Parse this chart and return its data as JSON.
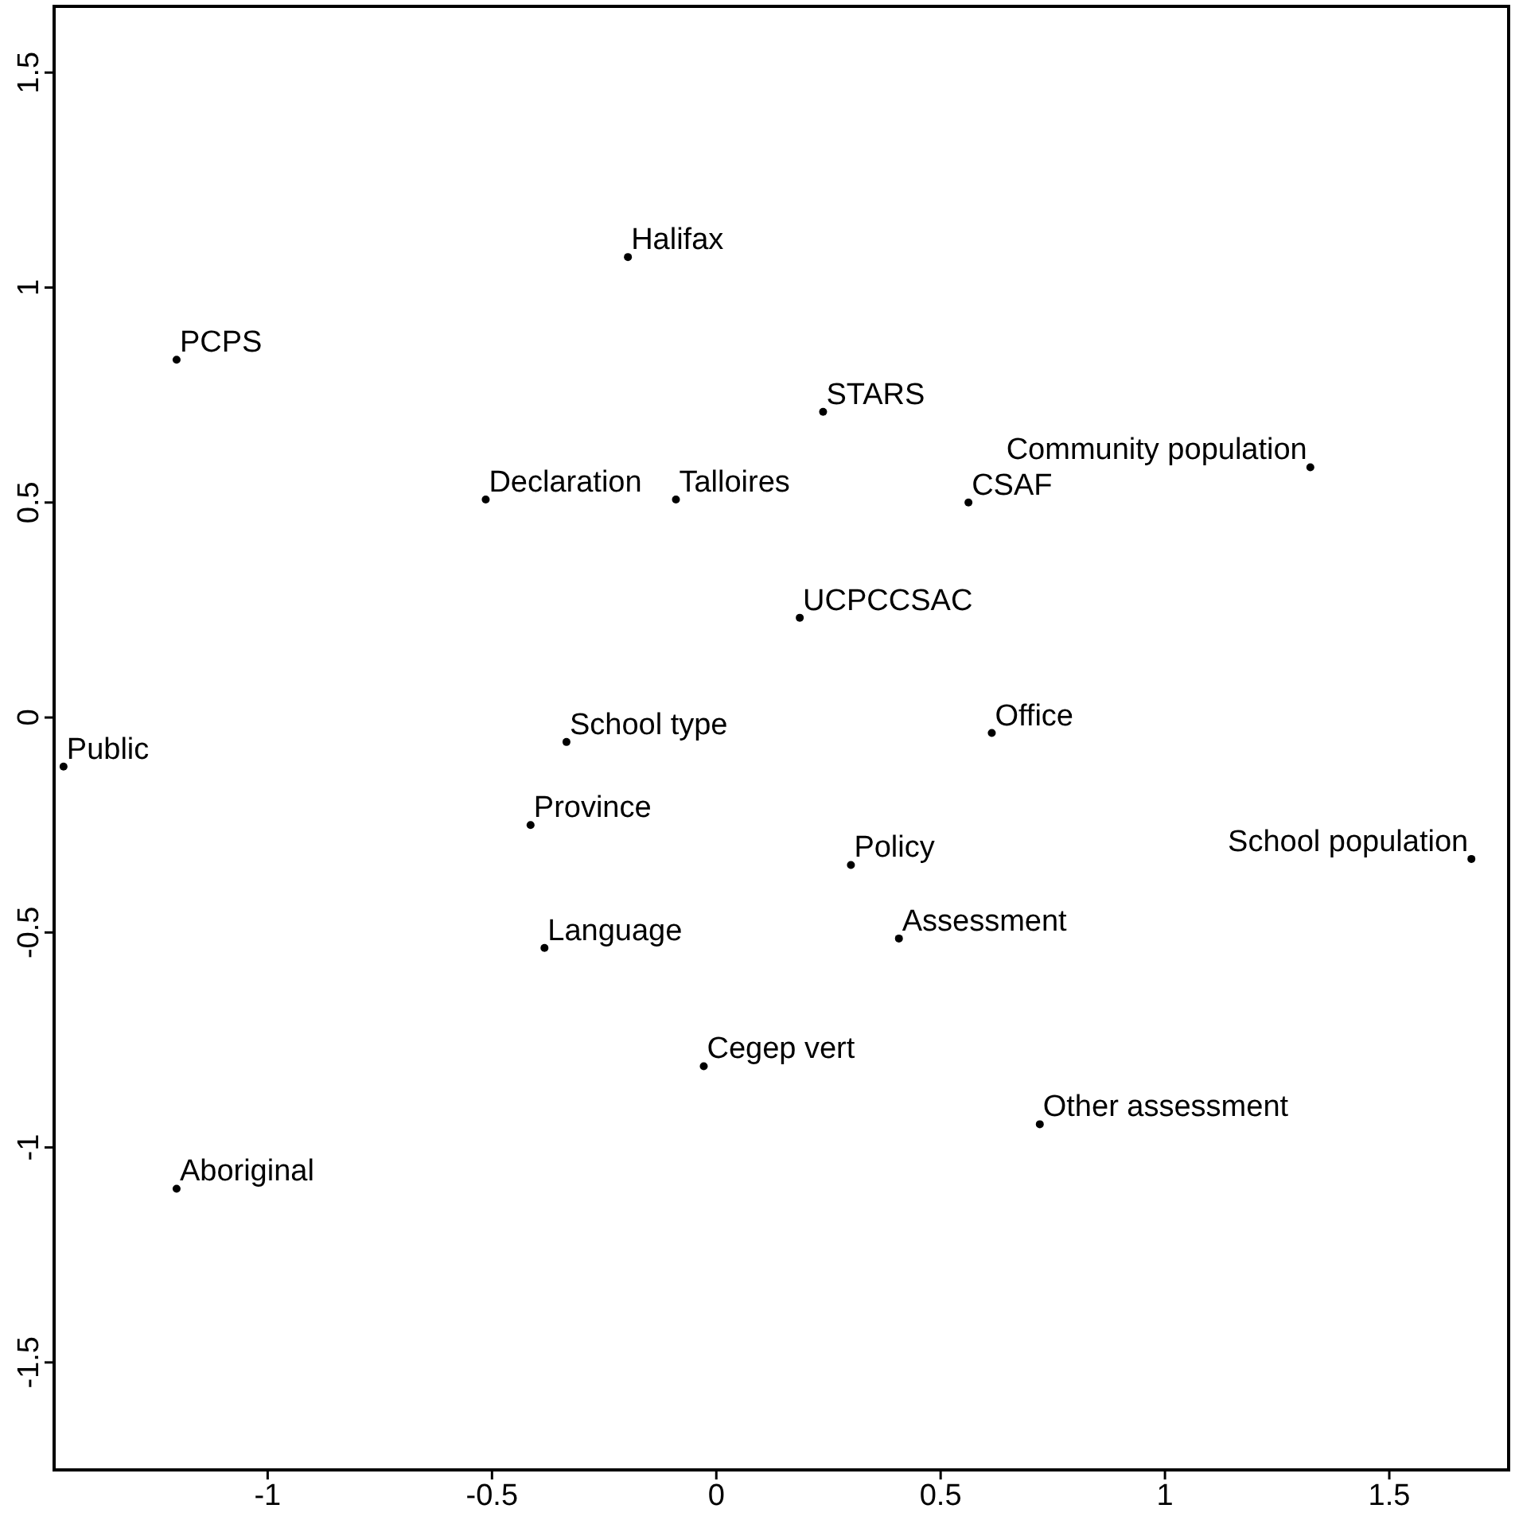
{
  "chart_data": {
    "type": "scatter",
    "x": [
      -0.197,
      -1.203,
      0.238,
      -0.514,
      -0.09,
      0.562,
      1.324,
      0.186,
      0.614,
      -0.334,
      -1.455,
      -0.414,
      0.3,
      1.683,
      0.407,
      -0.383,
      -0.028,
      0.721,
      -1.203
    ],
    "series": [
      {
        "color": "#000000",
        "values": [
          1.071,
          0.832,
          0.711,
          0.507,
          0.507,
          0.5,
          0.582,
          0.232,
          -0.036,
          -0.057,
          -0.114,
          -0.25,
          -0.343,
          -0.329,
          -0.514,
          -0.536,
          -0.811,
          -0.946,
          -1.096
        ]
      }
    ],
    "annotations": [
      {
        "text": "Halifax",
        "x": -0.197,
        "y": 1.071
      },
      {
        "text": "PCPS",
        "x": -1.203,
        "y": 0.832
      },
      {
        "text": "STARS",
        "x": 0.238,
        "y": 0.711
      },
      {
        "text": "Declaration",
        "x": -0.514,
        "y": 0.507
      },
      {
        "text": "Talloires",
        "x": -0.09,
        "y": 0.507
      },
      {
        "text": "CSAF",
        "x": 0.562,
        "y": 0.5
      },
      {
        "text": "Community population",
        "x": 1.324,
        "y": 0.582
      },
      {
        "text": "UCPCCSAC",
        "x": 0.186,
        "y": 0.232
      },
      {
        "text": "Office",
        "x": 0.614,
        "y": -0.036
      },
      {
        "text": "School type",
        "x": -0.334,
        "y": -0.057
      },
      {
        "text": "Public",
        "x": -1.455,
        "y": -0.114
      },
      {
        "text": "Province",
        "x": -0.414,
        "y": -0.25
      },
      {
        "text": "Policy",
        "x": 0.3,
        "y": -0.343
      },
      {
        "text": "School population",
        "x": 1.683,
        "y": -0.329
      },
      {
        "text": "Assessment",
        "x": 0.407,
        "y": -0.514
      },
      {
        "text": "Language",
        "x": -0.383,
        "y": -0.536
      },
      {
        "text": "Cegep vert",
        "x": -0.028,
        "y": -0.811
      },
      {
        "text": "Other assessment",
        "x": 0.721,
        "y": -0.946
      },
      {
        "text": "Aboriginal",
        "x": -1.203,
        "y": -1.096
      }
    ],
    "xlim": [
      -1.476,
      1.766
    ],
    "ylim": [
      -1.75,
      1.654
    ],
    "xticks": [
      -1,
      -0.5,
      0,
      0.5,
      1,
      1.5
    ],
    "yticks": [
      -1.5,
      -1,
      -0.5,
      0,
      0.5,
      1,
      1.5
    ],
    "marker": "circle",
    "grid": false
  }
}
